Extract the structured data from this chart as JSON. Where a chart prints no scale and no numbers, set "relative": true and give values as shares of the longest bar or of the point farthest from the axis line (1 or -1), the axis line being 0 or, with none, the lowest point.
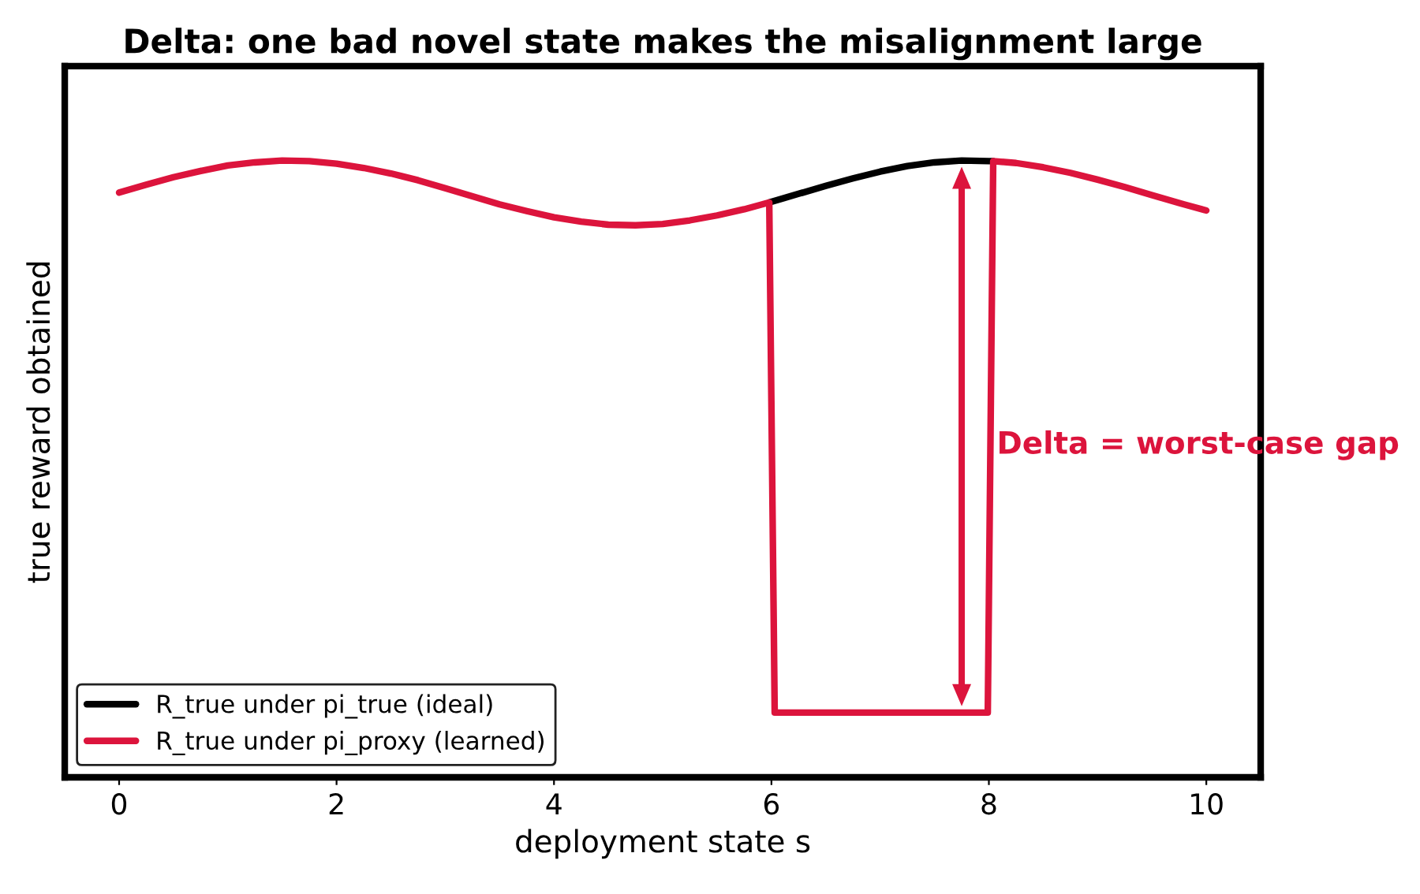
{
  "chart_data": {
    "type": "line",
    "title": "Delta: one bad novel state makes the misalignment large",
    "xlabel": "deployment state s",
    "ylabel": "true reward obtained",
    "relative": true,
    "tick_labels": "x",
    "legend": "bottom left",
    "xlim": [
      -0.5,
      10.5
    ],
    "xticks": [
      0,
      2,
      4,
      6,
      8,
      10
    ],
    "series": [
      {
        "name": "R_true under pi_true (ideal)",
        "color": "#000000",
        "x": [
          5.98,
          6.25,
          6.5,
          6.75,
          7.0,
          7.25,
          7.5,
          7.75,
          8.0,
          8.04
        ],
        "values": [
          0.932,
          0.946,
          0.959,
          0.971,
          0.982,
          0.991,
          0.997,
          1.0,
          0.999,
          0.999
        ]
      },
      {
        "name": "R_true under pi_proxy (learned)",
        "color": "#dc143c",
        "x": [
          0,
          0.25,
          0.5,
          0.75,
          1.0,
          1.25,
          1.5,
          1.75,
          2.0,
          2.25,
          2.5,
          2.75,
          3.0,
          3.25,
          3.5,
          3.75,
          4.0,
          4.25,
          4.5,
          4.75,
          5.0,
          5.25,
          5.5,
          5.75,
          5.98,
          6.03,
          7.99,
          8.04,
          8.25,
          8.5,
          8.75,
          9.0,
          9.25,
          9.5,
          9.75,
          10.0
        ],
        "values": [
          0.948,
          0.961,
          0.973,
          0.983,
          0.992,
          0.997,
          1.0,
          0.999,
          0.995,
          0.988,
          0.979,
          0.968,
          0.955,
          0.942,
          0.929,
          0.918,
          0.908,
          0.901,
          0.896,
          0.895,
          0.897,
          0.903,
          0.911,
          0.921,
          0.932,
          0.105,
          0.105,
          0.999,
          0.996,
          0.989,
          0.98,
          0.969,
          0.957,
          0.944,
          0.931,
          0.919
        ]
      }
    ],
    "annotations": [
      "Delta = worst-case gap"
    ]
  }
}
